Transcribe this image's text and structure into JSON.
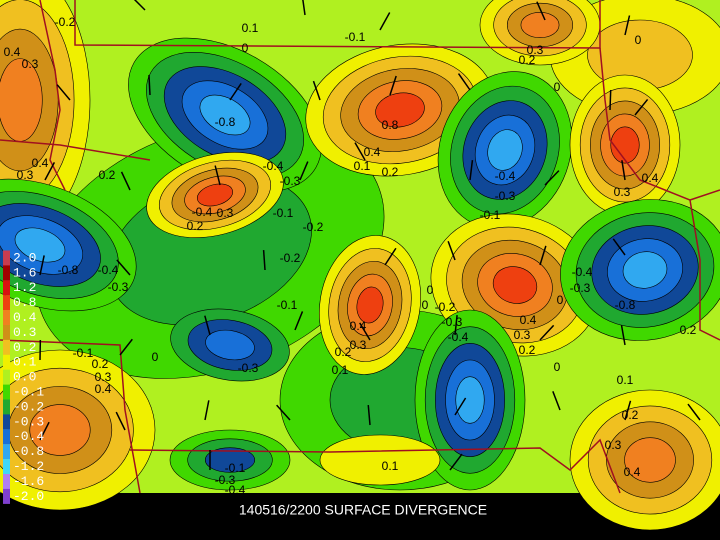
{
  "caption": "140516/2200 SURFACE DIVERGENCE",
  "legend": [
    {
      "label": "2.0",
      "color": "#c83c50"
    },
    {
      "label": "1.6",
      "color": "#a00000"
    },
    {
      "label": "1.2",
      "color": "#d81010"
    },
    {
      "label": "0.8",
      "color": "#ee4010"
    },
    {
      "label": "0.4",
      "color": "#f08020"
    },
    {
      "label": "0.3",
      "color": "#d09018"
    },
    {
      "label": "0.2",
      "color": "#f0c020"
    },
    {
      "label": "0.1",
      "color": "#f0f000"
    },
    {
      "label": "0.0",
      "color": "#b0f020"
    },
    {
      "label": "-0.1",
      "color": "#40d800"
    },
    {
      "label": "-0.2",
      "color": "#20a830"
    },
    {
      "label": "-0.3",
      "color": "#104898"
    },
    {
      "label": "-0.4",
      "color": "#1870d8"
    },
    {
      "label": "-0.8",
      "color": "#30a8f0"
    },
    {
      "label": "-1.2",
      "color": "#40d8f8"
    },
    {
      "label": "-1.6",
      "color": "#b080f0"
    },
    {
      "label": "-2.0",
      "color": "#8040d0"
    }
  ],
  "contour_labels": [
    "-0.2",
    "0.1",
    "0",
    "-0.1",
    "0.3",
    "0.2",
    "0",
    "0.4",
    "0.3",
    "-0.8",
    "0.8",
    "0",
    "-0.4",
    "-0.3",
    "0.3",
    "0.4",
    "0.2",
    "0.4",
    "0.3",
    "-0.4",
    "-0.3",
    "0.4",
    "0.1",
    "0.2",
    "-0.4",
    "0.3",
    "0.2",
    "-0.1",
    "-0.2",
    "-0.1",
    "-0.2",
    "-0.8",
    "-0.4",
    "-0.3",
    "-0.1",
    "0.4",
    "0.3",
    "0.2",
    "0.1",
    "0",
    "0",
    "-0.2",
    "-0.3",
    "-0.4",
    "0.4",
    "0.3",
    "0.2",
    "-0.4",
    "-0.3",
    "-0.8",
    "0",
    "0.2",
    "-0.3",
    "-0.1",
    "0",
    "0.2",
    "0.3",
    "0.4",
    "0",
    "0.1",
    "0.2",
    "0.3",
    "0.4",
    "0.1",
    "-0.1",
    "-0.3",
    "-0.4"
  ]
}
